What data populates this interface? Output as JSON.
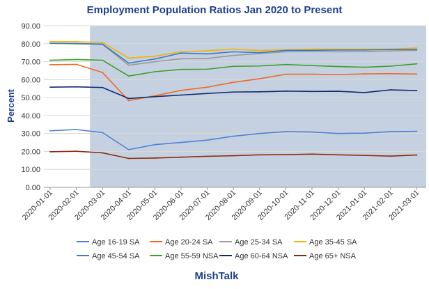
{
  "chart_data": {
    "type": "line",
    "title": "Employment Population Ratios Jan 2020 to Present",
    "ylabel": "Percent",
    "xlabel": "",
    "footer": "MishTalk",
    "ylim": [
      0,
      90
    ],
    "yticks": [
      "0.00",
      "10.00",
      "20.00",
      "30.00",
      "40.00",
      "50.00",
      "60.00",
      "70.00",
      "80.00",
      "90.00"
    ],
    "x": [
      "2020-01-01",
      "2020-02-01",
      "2020-03-01",
      "2020-04-01",
      "2020-05-01",
      "2020-06-01",
      "2020-07-01",
      "2020-08-01",
      "2020-09-01",
      "2020-10-01",
      "2020-11-01",
      "2020-12-01",
      "2021-01-01",
      "2021-02-01",
      "2021-03-01"
    ],
    "shaded_region": {
      "start": "2020-03-01",
      "end": "2021-03-01",
      "color": "#c5d1e0"
    },
    "grid": true,
    "legend_position": "bottom",
    "series": [
      {
        "name": "Age 16-19 SA",
        "color": "#4f81d8",
        "values": [
          31.5,
          32.2,
          30.5,
          21.0,
          23.8,
          25.0,
          26.3,
          28.5,
          30.0,
          31.0,
          30.8,
          30.0,
          30.2,
          31.0,
          31.2
        ]
      },
      {
        "name": "Age 20-24 SA",
        "color": "#ee6a24",
        "values": [
          68.3,
          68.5,
          64.0,
          48.3,
          51.0,
          54.0,
          55.8,
          58.5,
          60.5,
          63.0,
          63.0,
          62.8,
          63.2,
          63.3,
          63.1
        ]
      },
      {
        "name": "Age 25-34 SA",
        "color": "#9a9a9a",
        "values": [
          80.3,
          80.2,
          79.6,
          68.0,
          70.0,
          71.6,
          71.8,
          73.5,
          74.5,
          75.5,
          75.6,
          75.5,
          75.6,
          76.0,
          76.3
        ]
      },
      {
        "name": "Age 35-45 SA",
        "color": "#f2b300",
        "values": [
          81.2,
          81.1,
          80.7,
          72.0,
          73.0,
          75.5,
          76.0,
          77.0,
          76.2,
          76.6,
          77.0,
          77.0,
          77.0,
          77.0,
          77.6
        ]
      },
      {
        "name": "Age 45-54 SA",
        "color": "#3a78c8",
        "values": [
          80.2,
          80.0,
          79.8,
          69.2,
          71.5,
          74.8,
          74.3,
          75.5,
          75.0,
          76.3,
          76.3,
          76.5,
          76.5,
          76.8,
          76.9
        ]
      },
      {
        "name": "Age 55-59 NSA",
        "color": "#3aa02a",
        "values": [
          70.8,
          71.2,
          70.8,
          62.0,
          64.4,
          65.7,
          65.8,
          67.4,
          67.6,
          68.4,
          67.8,
          67.3,
          66.9,
          67.5,
          68.8
        ]
      },
      {
        "name": "Age 60-64 NSA",
        "color": "#132a6e",
        "values": [
          55.8,
          56.0,
          55.6,
          49.5,
          50.5,
          51.4,
          52.3,
          53.1,
          53.2,
          53.6,
          53.4,
          53.5,
          52.8,
          54.3,
          53.9
        ]
      },
      {
        "name": "Age 65+ NSA",
        "color": "#8a2a0d",
        "values": [
          19.8,
          20.1,
          19.2,
          16.1,
          16.3,
          16.8,
          17.3,
          17.6,
          18.1,
          18.2,
          18.5,
          18.1,
          17.8,
          17.4,
          18.0
        ]
      }
    ]
  }
}
